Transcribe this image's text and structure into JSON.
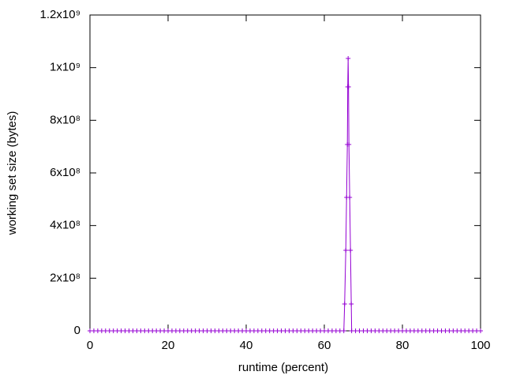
{
  "chart_data": {
    "type": "line",
    "x_label": "runtime (percent)",
    "y_label": "working set size (bytes)",
    "x": [
      0,
      1,
      2,
      3,
      4,
      5,
      6,
      7,
      8,
      9,
      10,
      11,
      12,
      13,
      14,
      15,
      16,
      17,
      18,
      19,
      20,
      21,
      22,
      23,
      24,
      25,
      26,
      27,
      28,
      29,
      30,
      31,
      32,
      33,
      34,
      35,
      36,
      37,
      38,
      39,
      40,
      41,
      42,
      43,
      44,
      45,
      46,
      47,
      48,
      49,
      50,
      51,
      52,
      53,
      54,
      55,
      56,
      57,
      58,
      59,
      60,
      61,
      62,
      63,
      64,
      65,
      65.2,
      65.5,
      65.7,
      65.9,
      66,
      66.1,
      66.2,
      66.3,
      66.5,
      66.7,
      66.9,
      67,
      68,
      69,
      70,
      71,
      72,
      73,
      74,
      75,
      76,
      77,
      78,
      79,
      80,
      81,
      82,
      83,
      84,
      85,
      86,
      87,
      88,
      89,
      90,
      91,
      92,
      93,
      94,
      95,
      96,
      97,
      98,
      99,
      100
    ],
    "series": [
      {
        "color": "#9400d3",
        "values": [
          0,
          0,
          0,
          0,
          0,
          0,
          0,
          0,
          0,
          0,
          0,
          0,
          0,
          0,
          0,
          0,
          0,
          0,
          0,
          0,
          0,
          0,
          0,
          0,
          0,
          0,
          0,
          0,
          0,
          0,
          0,
          0,
          0,
          0,
          0,
          0,
          0,
          0,
          0,
          0,
          0,
          0,
          0,
          0,
          0,
          0,
          0,
          0,
          0,
          0,
          0,
          0,
          0,
          0,
          0,
          0,
          0,
          0,
          0,
          0,
          0,
          0,
          0,
          0,
          0,
          0,
          102000000,
          306000000,
          507000000,
          708000000,
          927000000,
          1035000000,
          927000000,
          708000000,
          507000000,
          306000000,
          102000000,
          0,
          0,
          0,
          0,
          0,
          0,
          0,
          0,
          0,
          0,
          0,
          0,
          0,
          0,
          0,
          0,
          0,
          0,
          0,
          0,
          0,
          0,
          0,
          0,
          0,
          0,
          0,
          0,
          0,
          0,
          0,
          0,
          0,
          0
        ]
      }
    ],
    "xlim": [
      0,
      100
    ],
    "xticks": [
      0,
      20,
      40,
      60,
      80,
      100
    ],
    "ylim": [
      0,
      1200000000
    ],
    "yticks": [
      0,
      {
        "value": 200000000,
        "label": "2x10⁸"
      },
      {
        "value": 400000000,
        "label": "4x10⁸"
      },
      {
        "value": 600000000,
        "label": "6x10⁸"
      },
      {
        "value": 800000000,
        "label": "8x10⁸"
      },
      {
        "value": 1000000000,
        "label": "1x10⁹"
      },
      {
        "value": 1200000000,
        "label": "1.2x10⁹"
      }
    ],
    "grid": false
  }
}
